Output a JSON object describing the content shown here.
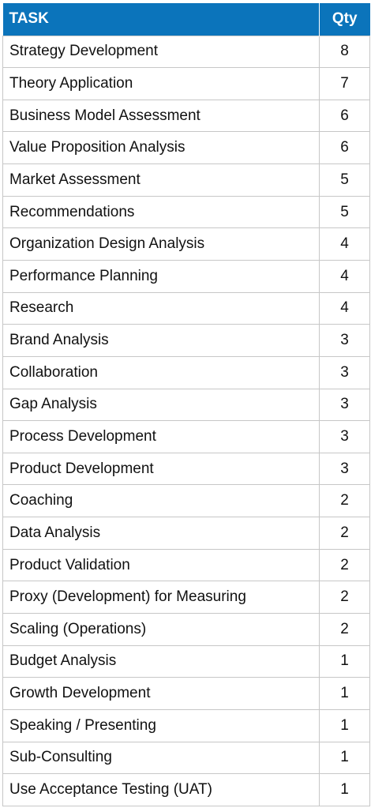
{
  "table": {
    "headers": {
      "task": "TASK",
      "qty": "Qty"
    },
    "colors": {
      "header_bg": "#0b74bb",
      "header_text": "#ffffff",
      "grid": "#c7c7c7"
    },
    "rows": [
      {
        "task": "Strategy Development",
        "qty": "8"
      },
      {
        "task": "Theory Application",
        "qty": "7"
      },
      {
        "task": "Business Model Assessment",
        "qty": "6"
      },
      {
        "task": "Value Proposition Analysis",
        "qty": "6"
      },
      {
        "task": "Market Assessment",
        "qty": "5"
      },
      {
        "task": "Recommendations",
        "qty": "5"
      },
      {
        "task": "Organization Design Analysis",
        "qty": "4"
      },
      {
        "task": "Performance Planning",
        "qty": "4"
      },
      {
        "task": "Research",
        "qty": "4"
      },
      {
        "task": "Brand Analysis",
        "qty": "3"
      },
      {
        "task": "Collaboration",
        "qty": "3"
      },
      {
        "task": "Gap Analysis",
        "qty": "3"
      },
      {
        "task": "Process Development",
        "qty": "3"
      },
      {
        "task": "Product Development",
        "qty": "3"
      },
      {
        "task": "Coaching",
        "qty": "2"
      },
      {
        "task": "Data Analysis",
        "qty": "2"
      },
      {
        "task": "Product Validation",
        "qty": "2"
      },
      {
        "task": "Proxy (Development) for Measuring",
        "qty": "2"
      },
      {
        "task": "Scaling (Operations)",
        "qty": "2"
      },
      {
        "task": "Budget Analysis",
        "qty": "1"
      },
      {
        "task": "Growth Development",
        "qty": "1"
      },
      {
        "task": "Speaking / Presenting",
        "qty": "1"
      },
      {
        "task": "Sub-Consulting",
        "qty": "1"
      },
      {
        "task": "Use Acceptance Testing (UAT)",
        "qty": "1"
      }
    ]
  }
}
